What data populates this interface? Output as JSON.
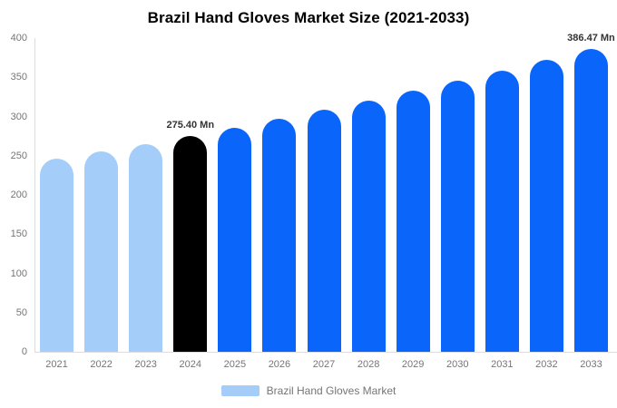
{
  "title": "Brazil Hand Gloves Market Size (2021-2033)",
  "legend": {
    "label": "Brazil Hand Gloves Market",
    "swatch_color": "#a5cdfa"
  },
  "colors": {
    "bar_light": "#a5cdfa",
    "bar_highlight": "#000000",
    "bar_primary": "#0a66fb",
    "axis_line": "#dddddd",
    "axis_text": "#757575",
    "annotation_text": "#333333",
    "title_text": "#000000",
    "background": "#ffffff"
  },
  "chart_data": {
    "type": "bar",
    "title": "Brazil Hand Gloves Market Size (2021-2033)",
    "unit": "Mn",
    "categories": [
      "2021",
      "2022",
      "2023",
      "2024",
      "2025",
      "2026",
      "2027",
      "2028",
      "2029",
      "2030",
      "2031",
      "2032",
      "2033"
    ],
    "series": [
      {
        "name": "Brazil Hand Gloves Market",
        "values": [
          245.98,
          255.42,
          265.22,
          275.4,
          285.97,
          296.95,
          308.35,
          320.18,
          332.47,
          345.23,
          358.48,
          372.24,
          386.47
        ]
      }
    ],
    "bar_colors": [
      "#a5cdfa",
      "#a5cdfa",
      "#a5cdfa",
      "#000000",
      "#0a66fb",
      "#0a66fb",
      "#0a66fb",
      "#0a66fb",
      "#0a66fb",
      "#0a66fb",
      "#0a66fb",
      "#0a66fb",
      "#0a66fb"
    ],
    "annotations": [
      {
        "category": "2024",
        "text": "275.40 Mn"
      },
      {
        "category": "2033",
        "text": "386.47 Mn"
      }
    ],
    "xlabel": "",
    "ylabel": "",
    "ylim": [
      0,
      400
    ],
    "yticks": [
      0,
      50,
      100,
      150,
      200,
      250,
      300,
      350,
      400
    ],
    "grid": false,
    "legend_position": "bottom-center"
  }
}
